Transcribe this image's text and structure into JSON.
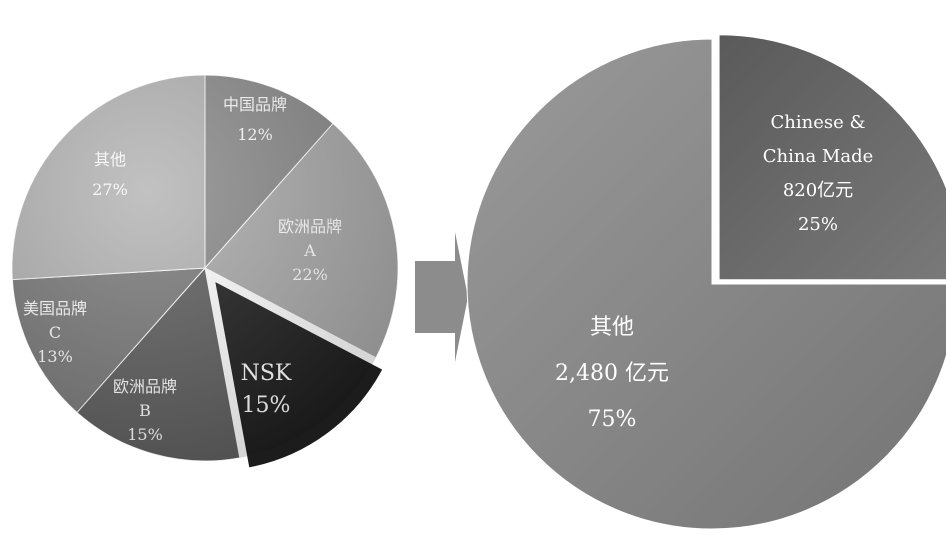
{
  "chart_data": [
    {
      "type": "pie",
      "slices": [
        {
          "label_lines": [
            "中国品牌",
            "12%"
          ],
          "value": 12,
          "color": "#8a8a8a"
        },
        {
          "label_lines": [
            "欧洲品牌",
            "A",
            "22%"
          ],
          "value": 22,
          "color": "#a9a9a9"
        },
        {
          "label_lines": [
            "NSK",
            "15%"
          ],
          "value": 15,
          "color": "#1c1c1c",
          "exploded": true
        },
        {
          "label_lines": [
            "欧洲品牌",
            "B",
            "15%"
          ],
          "value": 15,
          "color": "#5e5e5e"
        },
        {
          "label_lines": [
            "美国品牌",
            "C",
            "13%"
          ],
          "value": 13,
          "color": "#7a7a7a"
        },
        {
          "label_lines": [
            "其他",
            "27%"
          ],
          "value": 27,
          "color": "#b4b4b4"
        }
      ]
    },
    {
      "type": "pie",
      "slices": [
        {
          "label_lines": [
            "Chinese &",
            "China Made",
            "820亿元",
            "25%"
          ],
          "value": 25,
          "color": "#6a6a6a",
          "exploded": true
        },
        {
          "label_lines": [
            "其他",
            "2,480 亿元",
            "75%"
          ],
          "value": 75,
          "color": "#8f8f8f"
        }
      ]
    }
  ],
  "arrow_color": "#8c8c8c"
}
